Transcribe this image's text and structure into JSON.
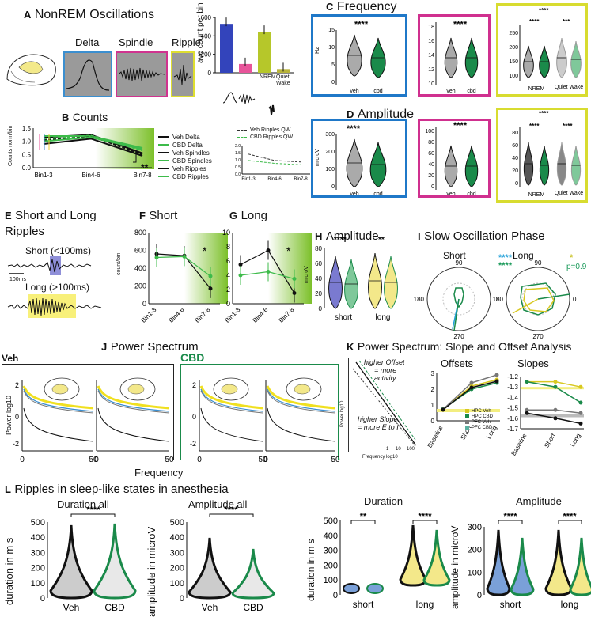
{
  "panelA": {
    "letter": "A",
    "title": "NonREM Oscillations",
    "labels": [
      "Delta",
      "Spindle",
      "Ripple"
    ],
    "bar_chart": {
      "type": "bar",
      "ylabel": "ave count per bin",
      "yticks": [
        "0",
        "200",
        "400",
        "600"
      ],
      "xlabel_nrem": "NREM",
      "xlabel_qw": "Quiet Wake",
      "values": [
        530,
        95,
        445,
        40
      ],
      "colors": [
        "#3344bb",
        "#e8549a",
        "#b6c72a",
        "#b8b33a"
      ]
    }
  },
  "panelB": {
    "letter": "B",
    "title": "Counts",
    "ylabel": "Counts norm/bin",
    "yticks": [
      "0.0",
      "0.5",
      "1.0",
      "1.5"
    ],
    "xticks": [
      "Bin1-3",
      "Bin4-6",
      "Bin7-8"
    ],
    "legend": [
      "Veh Delta",
      "CBD Delta",
      "Veh Spindles",
      "CBD Spindles",
      "Veh Ripples",
      "CBD Ripples"
    ],
    "sig": "**",
    "inset": {
      "legend": [
        "Veh Ripples QW",
        "CBD Ripples QW"
      ],
      "yticks": [
        "0.0",
        "0.5",
        "1.0",
        "1.5",
        "2.0"
      ],
      "xticks": [
        "Bin1-3",
        "Bin4-6",
        "Bin7-8"
      ],
      "ylabel": "Counts norm/bin",
      "series": [
        {
          "name": "Veh Ripples QW",
          "values": [
            1.4,
            0.95,
            0.85
          ]
        },
        {
          "name": "CBD Ripples QW",
          "values": [
            0.95,
            0.75,
            0.65
          ]
        }
      ]
    }
  },
  "panelC": {
    "letter": "C",
    "title": "Frequency",
    "ylabel": "Hz",
    "box1_yticks": [
      "0",
      "5",
      "10",
      "15"
    ],
    "box2_yticks": [
      "10",
      "12",
      "14",
      "16",
      "18"
    ],
    "box3_yticks": [
      "100",
      "150",
      "200",
      "250"
    ],
    "x1": [
      "veh",
      "cbd"
    ],
    "x3": [
      "NREM",
      "Quiet Wake"
    ],
    "sig": "****",
    "sig3": [
      "****",
      "****",
      "***"
    ]
  },
  "panelD": {
    "letter": "D",
    "title": "Amplitude",
    "ylabel": "microV",
    "box1_yticks": [
      "0",
      "100",
      "200",
      "300"
    ],
    "box2_yticks": [
      "0",
      "20",
      "40",
      "60",
      "80",
      "100"
    ],
    "box3_yticks": [
      "0",
      "20",
      "40",
      "60",
      "80"
    ],
    "x1": [
      "veh",
      "cbd"
    ],
    "x3": [
      "NREM",
      "Quiet Wake"
    ],
    "sig": "****",
    "sig3": [
      "****",
      "****",
      "****"
    ]
  },
  "panelE": {
    "letter": "E",
    "title1": "Short and Long",
    "title2": "Ripples",
    "short": "Short (<100ms)",
    "long": "Long (>100ms)",
    "scale": "100ms"
  },
  "panelF": {
    "letter": "F",
    "title": "Short",
    "ylabel": "count/bin",
    "yticks": [
      "0",
      "200",
      "400",
      "600",
      "800"
    ],
    "xticks": [
      "Bin1-3",
      "Bin4-6",
      "Bin7-8"
    ],
    "sig": "*",
    "chart_data": {
      "type": "line",
      "series": [
        {
          "name": "Veh",
          "values": [
            560,
            540,
            170
          ]
        },
        {
          "name": "CBD",
          "values": [
            520,
            530,
            310
          ]
        }
      ]
    }
  },
  "panelG": {
    "letter": "G",
    "title": "Long",
    "yticks": [
      "0",
      "2",
      "4",
      "6",
      "8",
      "10"
    ],
    "xticks": [
      "Bin1-3",
      "Bin4-6",
      "Bin7-8"
    ],
    "sig": "*",
    "chart_data": {
      "type": "line",
      "series": [
        {
          "name": "Veh",
          "values": [
            5.5,
            7.5,
            1.5
          ]
        },
        {
          "name": "CBD",
          "values": [
            4,
            4.5,
            3.5
          ]
        }
      ]
    }
  },
  "panelH": {
    "letter": "H",
    "title": "Amplitude",
    "ylabel": "microV",
    "yticks": [
      "0",
      "20",
      "40",
      "60",
      "80"
    ],
    "xticks": [
      "short",
      "long"
    ],
    "sig": [
      "****",
      "**"
    ]
  },
  "panelI": {
    "letter": "I",
    "title": "Slow Oscillation Phase",
    "short": "Short",
    "long": "Long",
    "angles": [
      "90",
      "180",
      "270",
      "0"
    ],
    "sig_short": [
      "****",
      "****"
    ],
    "sig_long": [
      "*",
      "p=0.9"
    ]
  },
  "panelJ": {
    "letter": "J",
    "title": "Power Spectrum",
    "veh": "Veh",
    "cbd": "CBD",
    "ylabel": "Power log10",
    "yticks": [
      "2",
      "0",
      "-2"
    ],
    "xticks": [
      "0",
      "50"
    ],
    "xlabel": "Frequency"
  },
  "panelK": {
    "letter": "K",
    "title": "Power Spectrum: Slope and Offset Analysis",
    "ann1": "higher Offset",
    "ann2": "= more",
    "ann3": "activity",
    "ann4": "higher Slope",
    "ann5": "= more E to I",
    "ylabel": "Power log10",
    "xlabel": "Frequency log10",
    "xticks": [
      "1",
      "10",
      "100"
    ],
    "offsets": {
      "title": "Offsets",
      "yticks": [
        "0",
        "1",
        "2",
        "3"
      ],
      "xticks": [
        "Baseline",
        "Short",
        "Long"
      ],
      "legend": [
        "HPC Veh",
        "HPC CBD",
        "PFC Veh",
        "PFC CBD"
      ]
    },
    "slopes": {
      "title": "Slopes",
      "yticks": [
        "-1.2",
        "-1.3",
        "-1.4",
        "-1.5",
        "-1.6",
        "-1.7"
      ],
      "xticks": [
        "Baseline",
        "Short",
        "Long"
      ]
    }
  },
  "panelL": {
    "letter": "L",
    "title": "Ripples in sleep-like states in anesthesia",
    "dur_all": {
      "title": "Duration all",
      "ylabel": "duration in m s",
      "yticks": [
        "0",
        "100",
        "200",
        "300",
        "400",
        "500"
      ],
      "xticks": [
        "Veh",
        "CBD"
      ],
      "sig": "****"
    },
    "amp_all": {
      "title": "Amplitude all",
      "ylabel": "amplitude in microV",
      "yticks": [
        "0",
        "100",
        "200",
        "300",
        "400",
        "500"
      ],
      "xticks": [
        "Veh",
        "CBD"
      ],
      "sig": "****"
    },
    "dur": {
      "title": "Duration",
      "ylabel": "duration in m s",
      "yticks": [
        "0",
        "100",
        "200",
        "300",
        "400",
        "500"
      ],
      "xticks": [
        "short",
        "long"
      ],
      "sig": [
        "**",
        "****"
      ]
    },
    "amp": {
      "title": "Amplitude",
      "ylabel": "amplitude in microV",
      "yticks": [
        "0",
        "100",
        "200",
        "300"
      ],
      "xticks": [
        "short",
        "long"
      ],
      "sig": [
        "****",
        "****"
      ]
    }
  }
}
